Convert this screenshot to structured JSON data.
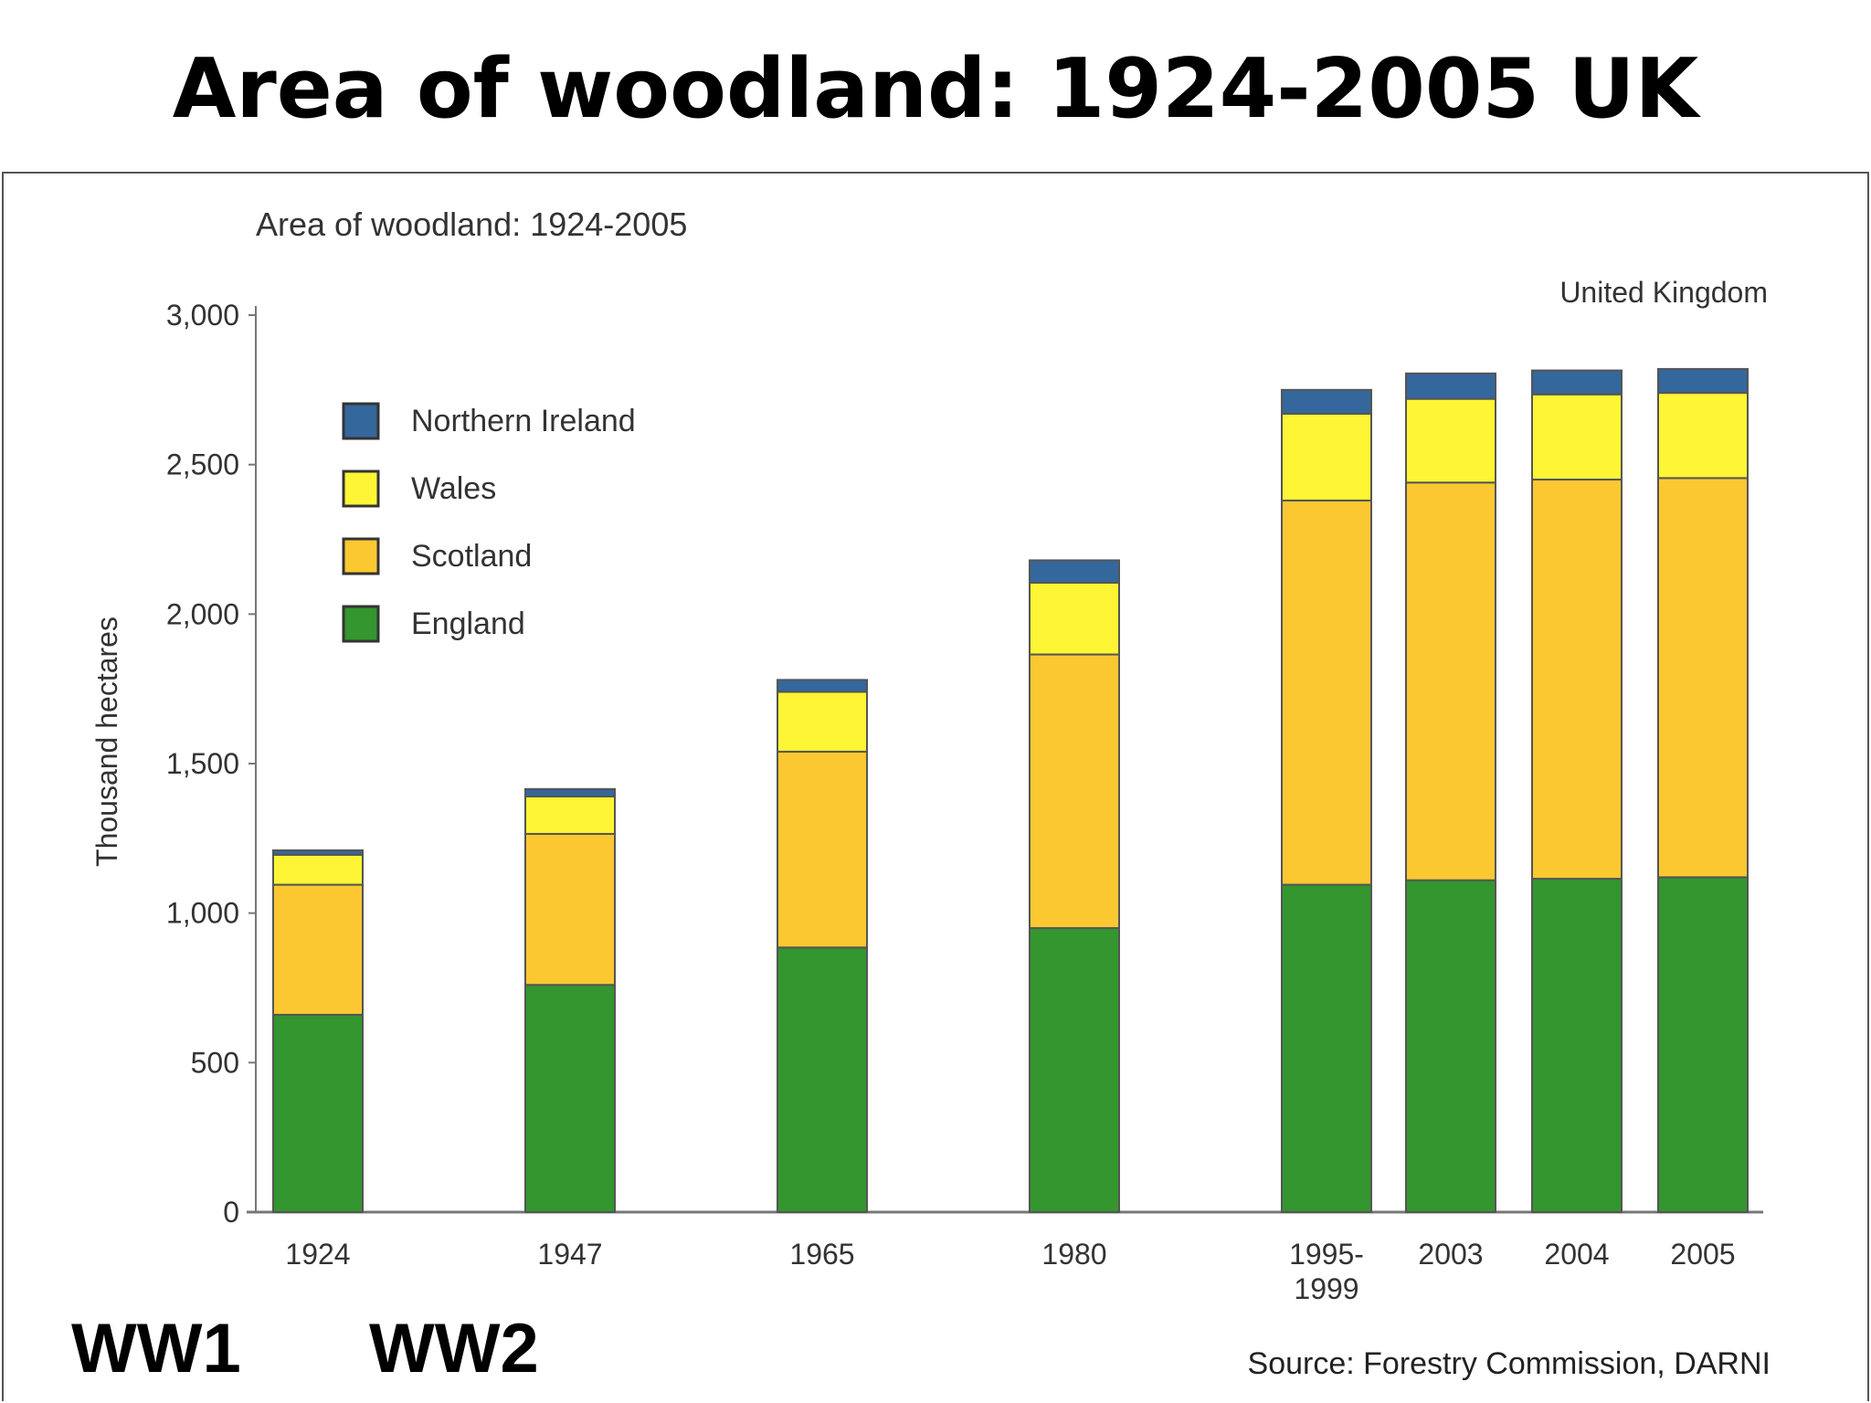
{
  "slide_title": "Area of woodland: 1924-2005 UK",
  "annotations": {
    "ww1": "WW1",
    "ww2": "WW2"
  },
  "source": "Source: Forestry Commission, DARNI",
  "chart_data": {
    "type": "bar",
    "stacked": true,
    "title": "Area of woodland: 1924-2005",
    "subtitle": "United Kingdom",
    "ylabel": "Thousand hectares",
    "xlabel": "",
    "ylim": [
      0,
      3000
    ],
    "yticks": [
      0,
      500,
      1000,
      1500,
      2000,
      2500,
      3000
    ],
    "ytick_labels": [
      "0",
      "500",
      "1,000",
      "1,500",
      "2,000",
      "2,500",
      "3,000"
    ],
    "grid": false,
    "legend_position": "top-left",
    "categories": [
      "1924",
      "1947",
      "1965",
      "1980",
      "1995-\n1999",
      "2003",
      "2004",
      "2005"
    ],
    "series": [
      {
        "name": "England",
        "color": "#33962e",
        "values": [
          660,
          760,
          885,
          950,
          1095,
          1110,
          1115,
          1120
        ]
      },
      {
        "name": "Scotland",
        "color": "#fcc832",
        "values": [
          435,
          505,
          655,
          915,
          1285,
          1330,
          1335,
          1335
        ]
      },
      {
        "name": "Wales",
        "color": "#fef534",
        "values": [
          100,
          125,
          200,
          240,
          290,
          280,
          285,
          285
        ]
      },
      {
        "name": "Northern Ireland",
        "color": "#34679c",
        "values": [
          15,
          25,
          40,
          75,
          80,
          85,
          80,
          80
        ]
      }
    ],
    "legend_order": [
      "Northern Ireland",
      "Wales",
      "Scotland",
      "England"
    ]
  }
}
